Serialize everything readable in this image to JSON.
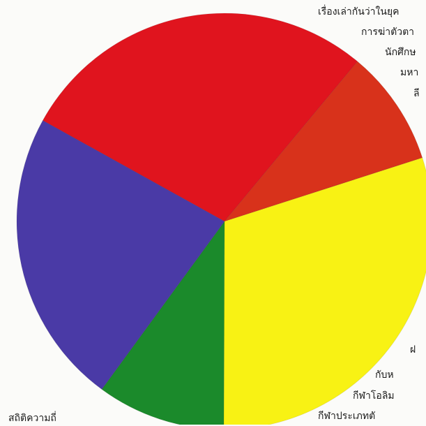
{
  "chart_data": {
    "type": "pie",
    "title": "",
    "slices": [
      {
        "name": "",
        "value": 28,
        "color": "#e0141e"
      },
      {
        "name": "",
        "value": 9,
        "color": "#d8321b"
      },
      {
        "name": "",
        "value": 30,
        "color": "#f8f214"
      },
      {
        "name": "",
        "value": 10,
        "color": "#1b8a2b"
      },
      {
        "name": "",
        "value": 23,
        "color": "#4a3aa6"
      }
    ]
  },
  "text": {
    "right_column": [
      "เรื่องเล่ากันว่าในยุค",
      "การฆ่าตัวตา",
      "นักศึกษ",
      "มหา",
      "ลี",
      "ฝ",
      "กับห",
      "กีฬาโอลิม",
      "กีฬาประเภทตั"
    ],
    "bottom_left": "สถิติความถี่"
  }
}
